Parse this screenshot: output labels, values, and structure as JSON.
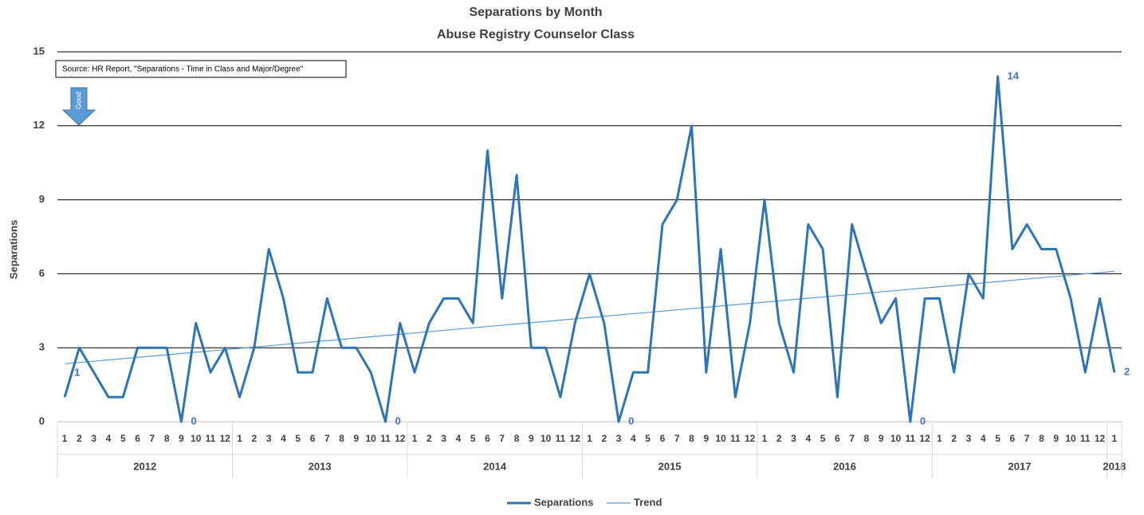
{
  "chart_data": {
    "type": "line",
    "title": "Separations by Month",
    "subtitle": "Abuse Registry Counselor Class",
    "y_label": "Separations",
    "source_note": "Source: HR Report, \"Separations - Time in Class and Major/Degree\"",
    "annotation": "Good",
    "categories": [
      "1",
      "2",
      "3",
      "4",
      "5",
      "6",
      "7",
      "8",
      "9",
      "10",
      "11",
      "12",
      "1",
      "2",
      "3",
      "4",
      "5",
      "6",
      "7",
      "8",
      "9",
      "10",
      "11",
      "12",
      "1",
      "2",
      "3",
      "4",
      "5",
      "6",
      "7",
      "8",
      "9",
      "10",
      "11",
      "12",
      "1",
      "2",
      "3",
      "4",
      "5",
      "6",
      "7",
      "8",
      "9",
      "10",
      "11",
      "12",
      "1",
      "2",
      "3",
      "4",
      "5",
      "6",
      "7",
      "8",
      "9",
      "10",
      "11",
      "12",
      "1",
      "2",
      "3",
      "4",
      "5",
      "6",
      "7",
      "8",
      "9",
      "10",
      "11",
      "12",
      "1"
    ],
    "years": [
      "2012",
      "2013",
      "2014",
      "2015",
      "2016",
      "2017",
      "2018"
    ],
    "series": [
      {
        "name": "Separations",
        "color": "#2e75b6",
        "values": [
          1,
          3,
          2,
          1,
          1,
          3,
          3,
          3,
          0,
          4,
          2,
          3,
          1,
          3,
          7,
          5,
          2,
          2,
          5,
          3,
          3,
          2,
          0,
          4,
          2,
          4,
          5,
          5,
          4,
          11,
          5,
          10,
          3,
          3,
          1,
          4,
          6,
          4,
          0,
          2,
          2,
          8,
          9,
          12,
          2,
          7,
          1,
          4,
          9,
          4,
          2,
          8,
          7,
          1,
          8,
          6,
          4,
          5,
          0,
          5,
          5,
          2,
          6,
          5,
          14,
          7,
          8,
          7,
          7,
          5,
          2,
          5,
          2
        ],
        "value_labels": [
          "1",
          null,
          null,
          null,
          null,
          null,
          null,
          null,
          "0",
          null,
          null,
          null,
          null,
          null,
          null,
          null,
          null,
          null,
          null,
          null,
          null,
          null,
          "0",
          null,
          null,
          null,
          null,
          null,
          null,
          null,
          null,
          null,
          null,
          null,
          null,
          null,
          null,
          null,
          "0",
          null,
          null,
          null,
          null,
          null,
          null,
          null,
          null,
          null,
          null,
          null,
          null,
          null,
          null,
          null,
          null,
          null,
          null,
          null,
          "0",
          null,
          null,
          null,
          null,
          null,
          "14",
          null,
          null,
          null,
          null,
          null,
          null,
          null,
          "2"
        ]
      }
    ],
    "trend": {
      "name": "Trend",
      "color": "#5b9bd5",
      "values": [
        2.35,
        6.1
      ]
    },
    "ylim": [
      0,
      15
    ],
    "yticks": [
      0,
      3,
      6,
      9,
      12,
      15
    ],
    "grid": true
  }
}
